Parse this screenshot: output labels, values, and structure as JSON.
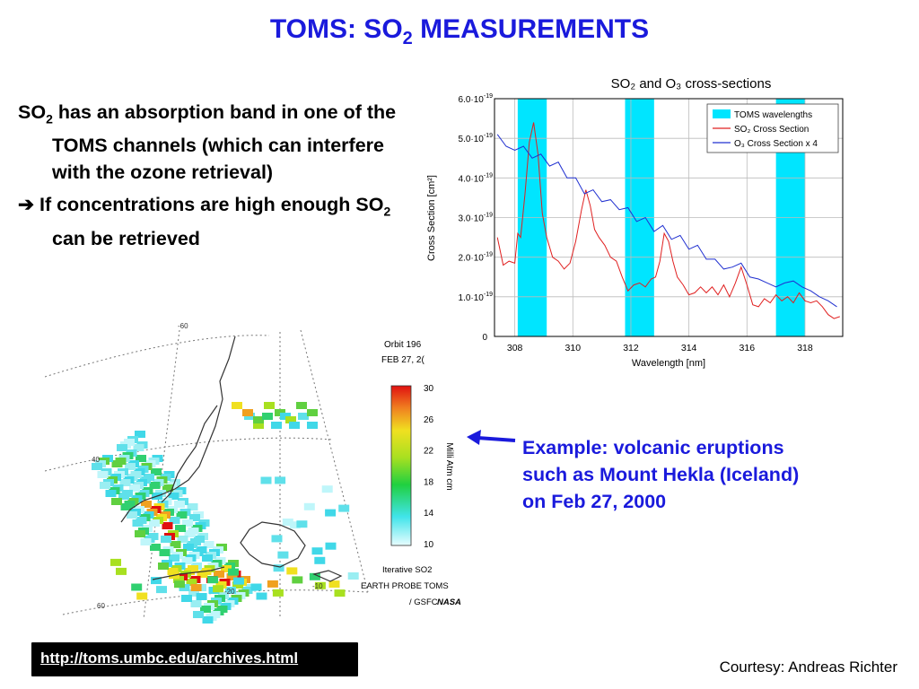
{
  "slide": {
    "title_prefix": "TOMS: SO",
    "title_sub": "2",
    "title_suffix": " MEASUREMENTS",
    "bullets": [
      {
        "lead": "SO",
        "lead_sub": "2",
        "text": " has an absorption band in one of the TOMS channels (which can interfere with the ozone retrieval)"
      },
      {
        "arrow": "➔",
        "text": " If concentrations are high enough SO",
        "sub": "2",
        "tail": " can be retrieved"
      }
    ],
    "example_text": "Example: volcanic eruptions such as Mount Hekla (Iceland) on Feb 27, 2000",
    "link_text": "http://toms.umbc.edu/archives.html",
    "courtesy": "Courtesy: Andreas Richter"
  },
  "map": {
    "orbit": "Orbit 196",
    "date": "FEB 27, 2(",
    "colorbar_ticks": [
      "30",
      "26",
      "22",
      "18",
      "14",
      "10"
    ],
    "units": "Milli Atm cm",
    "caption_lines": [
      "Iterative SO2",
      "EARTH PROBE TOMS",
      "/ GSFC"
    ],
    "logo_text": "NASA",
    "grid_labels": [
      "-60",
      "-20",
      "-10",
      "60",
      "40"
    ]
  },
  "colors": {
    "title_blue": "#1a1adc",
    "toms_band": "#00e5ff",
    "so2_line": "#e02020",
    "o3_line": "#2030d0"
  },
  "chart_data": {
    "type": "line",
    "title": "SO₂ and O₃ cross-sections",
    "xlabel": "Wavelength  [nm]",
    "ylabel": "Cross Section [cm²]",
    "xlim": [
      307.3,
      319.3
    ],
    "ylim": [
      0,
      6e-19
    ],
    "x_ticks": [
      308,
      310,
      312,
      314,
      316,
      318
    ],
    "y_ticks": [
      {
        "value": 0,
        "label": "0"
      },
      {
        "value": 1e-19,
        "label": "1.0·10",
        "exp": "-19"
      },
      {
        "value": 2e-19,
        "label": "2.0·10",
        "exp": "-19"
      },
      {
        "value": 3e-19,
        "label": "3.0·10",
        "exp": "-19"
      },
      {
        "value": 4e-19,
        "label": "4.0·10",
        "exp": "-19"
      },
      {
        "value": 5e-19,
        "label": "5.0·10",
        "exp": "-19"
      },
      {
        "value": 6e-19,
        "label": "6.0·10",
        "exp": "-19"
      }
    ],
    "grid": true,
    "legend_position": "top-right",
    "bands": {
      "name": "TOMS wavelengths",
      "ranges": [
        [
          308.1,
          309.1
        ],
        [
          311.8,
          312.8
        ],
        [
          317.0,
          318.0
        ]
      ]
    },
    "series": [
      {
        "name": "SO₂ Cross Section",
        "x": [
          307.4,
          307.6,
          307.8,
          308.0,
          308.1,
          308.2,
          308.35,
          308.5,
          308.65,
          308.8,
          308.95,
          309.1,
          309.3,
          309.5,
          309.7,
          309.9,
          310.1,
          310.3,
          310.45,
          310.6,
          310.75,
          310.9,
          311.1,
          311.3,
          311.5,
          311.7,
          311.9,
          312.1,
          312.3,
          312.5,
          312.7,
          312.85,
          313.0,
          313.15,
          313.3,
          313.45,
          313.6,
          313.8,
          314.0,
          314.2,
          314.4,
          314.6,
          314.8,
          315.0,
          315.2,
          315.4,
          315.6,
          315.8,
          316.0,
          316.2,
          316.4,
          316.6,
          316.8,
          317.0,
          317.2,
          317.4,
          317.6,
          317.8,
          318.0,
          318.2,
          318.4,
          318.6,
          318.8,
          319.0,
          319.2
        ],
        "y": [
          2.5e-19,
          1.8e-19,
          1.9e-19,
          1.85e-19,
          2.6e-19,
          2.5e-19,
          3.6e-19,
          4.9e-19,
          5.4e-19,
          4.6e-19,
          3.1e-19,
          2.5e-19,
          2e-19,
          1.9e-19,
          1.7e-19,
          1.85e-19,
          2.4e-19,
          3.2e-19,
          3.7e-19,
          3.3e-19,
          2.7e-19,
          2.5e-19,
          2.3e-19,
          2e-19,
          1.9e-19,
          1.5e-19,
          1.15e-19,
          1.3e-19,
          1.35e-19,
          1.25e-19,
          1.45e-19,
          1.5e-19,
          1.9e-19,
          2.6e-19,
          2.4e-19,
          1.9e-19,
          1.5e-19,
          1.3e-19,
          1.05e-19,
          1.1e-19,
          1.25e-19,
          1.1e-19,
          1.25e-19,
          1.05e-19,
          1.3e-19,
          1e-19,
          1.35e-19,
          1.75e-19,
          1.3e-19,
          8e-20,
          7.5e-20,
          9.5e-20,
          8.5e-20,
          1.05e-19,
          9e-20,
          1e-19,
          8.5e-20,
          1.1e-19,
          9e-20,
          8.5e-20,
          9e-20,
          7.5e-20,
          5.5e-20,
          4.5e-20,
          5e-20
        ]
      },
      {
        "name": "O₃ Cross Section x 4",
        "x": [
          307.4,
          307.7,
          308.0,
          308.3,
          308.6,
          308.9,
          309.2,
          309.5,
          309.8,
          310.1,
          310.4,
          310.7,
          311.0,
          311.3,
          311.6,
          311.9,
          312.2,
          312.5,
          312.8,
          313.1,
          313.4,
          313.7,
          314.0,
          314.3,
          314.6,
          314.9,
          315.2,
          315.5,
          315.8,
          316.1,
          316.4,
          316.7,
          317.0,
          317.3,
          317.6,
          317.9,
          318.2,
          318.5,
          318.8,
          319.1
        ],
        "y": [
          5.1e-19,
          4.8e-19,
          4.7e-19,
          4.8e-19,
          4.5e-19,
          4.6e-19,
          4.3e-19,
          4.4e-19,
          4e-19,
          4e-19,
          3.6e-19,
          3.7e-19,
          3.4e-19,
          3.45e-19,
          3.2e-19,
          3.25e-19,
          2.9e-19,
          3e-19,
          2.65e-19,
          2.8e-19,
          2.45e-19,
          2.55e-19,
          2.2e-19,
          2.3e-19,
          1.95e-19,
          1.95e-19,
          1.7e-19,
          1.75e-19,
          1.85e-19,
          1.5e-19,
          1.45e-19,
          1.35e-19,
          1.25e-19,
          1.35e-19,
          1.4e-19,
          1.25e-19,
          1.15e-19,
          1e-19,
          9e-20,
          7.5e-20
        ]
      }
    ]
  }
}
